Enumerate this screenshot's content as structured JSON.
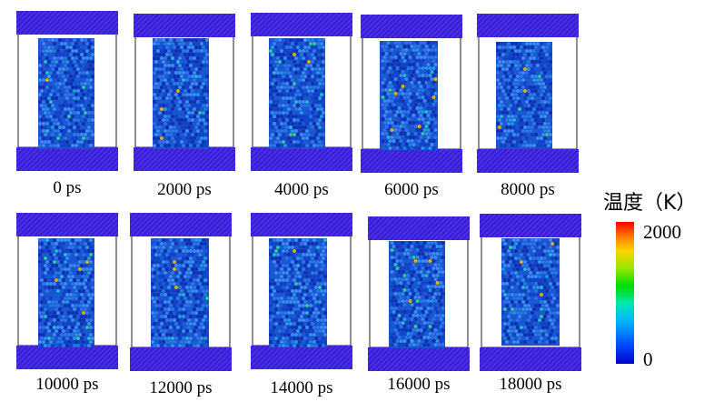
{
  "panels": [
    {
      "time_label": "0 ps"
    },
    {
      "time_label": "2000 ps"
    },
    {
      "time_label": "4000 ps"
    },
    {
      "time_label": "6000 ps"
    },
    {
      "time_label": "8000 ps"
    },
    {
      "time_label": "10000 ps"
    },
    {
      "time_label": "12000 ps"
    },
    {
      "time_label": "14000 ps"
    },
    {
      "time_label": "16000 ps"
    },
    {
      "time_label": "18000 ps"
    }
  ],
  "legend": {
    "title": "温度（K）",
    "max_label": "2000",
    "min_label": "0"
  },
  "colors": {
    "electrode": "#3a20d8",
    "electrode_stripe": "#5a44f0",
    "atom_base": "#1a5ad6"
  }
}
